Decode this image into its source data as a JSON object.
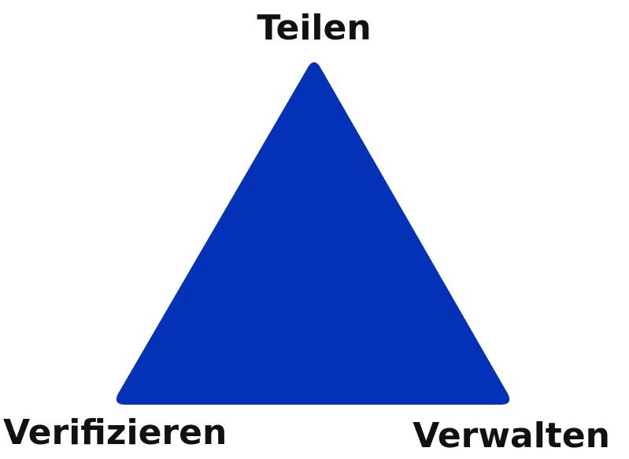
{
  "diagram": {
    "shape": "triangle",
    "fill_color": "#0331B8",
    "labels": {
      "top": "Teilen",
      "bottom_left": "Verifizieren",
      "bottom_right": "Verwalten"
    }
  }
}
